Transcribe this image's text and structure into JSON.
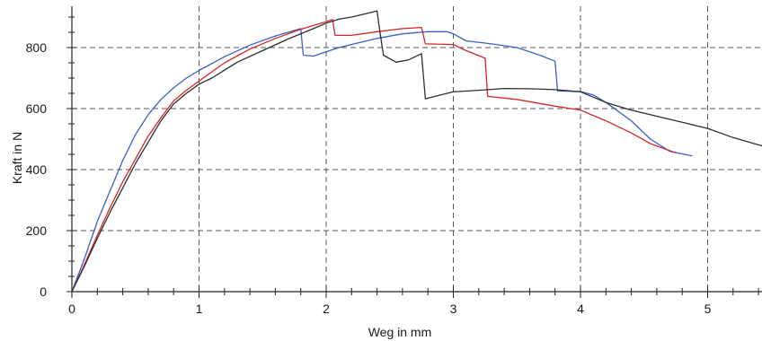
{
  "chart_data": {
    "type": "line",
    "xlabel": "Weg in mm",
    "ylabel": "Kraft in N",
    "xlim": [
      0,
      5.45
    ],
    "ylim": [
      0,
      900
    ],
    "xticks": [
      "0",
      "1",
      "2",
      "3",
      "4",
      "5"
    ],
    "yticks": [
      "0",
      "200",
      "400",
      "600",
      "800"
    ],
    "grid": "dashed",
    "series": [
      {
        "color": "#3a5fc8",
        "points": [
          [
            0,
            0
          ],
          [
            0.1,
            110
          ],
          [
            0.2,
            230
          ],
          [
            0.3,
            330
          ],
          [
            0.4,
            430
          ],
          [
            0.5,
            515
          ],
          [
            0.6,
            580
          ],
          [
            0.7,
            630
          ],
          [
            0.8,
            668
          ],
          [
            0.9,
            700
          ],
          [
            1.0,
            725
          ],
          [
            1.2,
            770
          ],
          [
            1.4,
            808
          ],
          [
            1.6,
            838
          ],
          [
            1.8,
            862
          ],
          [
            1.82,
            775
          ],
          [
            1.9,
            772
          ],
          [
            2.1,
            800
          ],
          [
            2.4,
            830
          ],
          [
            2.6,
            845
          ],
          [
            2.8,
            852
          ],
          [
            2.95,
            852
          ],
          [
            3.0,
            845
          ],
          [
            3.1,
            822
          ],
          [
            3.3,
            812
          ],
          [
            3.5,
            800
          ],
          [
            3.7,
            772
          ],
          [
            3.8,
            755
          ],
          [
            3.82,
            658
          ],
          [
            4.0,
            656
          ],
          [
            4.1,
            645
          ],
          [
            4.2,
            620
          ],
          [
            4.4,
            560
          ],
          [
            4.55,
            500
          ],
          [
            4.7,
            460
          ],
          [
            4.88,
            445
          ]
        ]
      },
      {
        "color": "#d42525",
        "points": [
          [
            0,
            0
          ],
          [
            0.1,
            90
          ],
          [
            0.2,
            185
          ],
          [
            0.3,
            275
          ],
          [
            0.4,
            360
          ],
          [
            0.5,
            435
          ],
          [
            0.6,
            510
          ],
          [
            0.7,
            570
          ],
          [
            0.8,
            625
          ],
          [
            0.9,
            660
          ],
          [
            1.0,
            690
          ],
          [
            1.2,
            750
          ],
          [
            1.4,
            795
          ],
          [
            1.6,
            830
          ],
          [
            1.8,
            860
          ],
          [
            2.0,
            885
          ],
          [
            2.05,
            892
          ],
          [
            2.07,
            840
          ],
          [
            2.2,
            840
          ],
          [
            2.4,
            852
          ],
          [
            2.6,
            862
          ],
          [
            2.75,
            866
          ],
          [
            2.78,
            812
          ],
          [
            3.0,
            810
          ],
          [
            3.1,
            790
          ],
          [
            3.25,
            765
          ],
          [
            3.27,
            640
          ],
          [
            3.5,
            630
          ],
          [
            3.8,
            608
          ],
          [
            4.0,
            595
          ],
          [
            4.2,
            560
          ],
          [
            4.4,
            520
          ],
          [
            4.55,
            485
          ],
          [
            4.75,
            455
          ]
        ]
      },
      {
        "color": "#2e2e2e",
        "points": [
          [
            0,
            0
          ],
          [
            0.1,
            85
          ],
          [
            0.2,
            175
          ],
          [
            0.3,
            260
          ],
          [
            0.4,
            340
          ],
          [
            0.5,
            420
          ],
          [
            0.6,
            490
          ],
          [
            0.7,
            560
          ],
          [
            0.8,
            615
          ],
          [
            0.9,
            650
          ],
          [
            1.0,
            680
          ],
          [
            1.1,
            700
          ],
          [
            1.3,
            752
          ],
          [
            1.5,
            790
          ],
          [
            1.7,
            828
          ],
          [
            1.9,
            862
          ],
          [
            2.0,
            880
          ],
          [
            2.1,
            893
          ],
          [
            2.2,
            900
          ],
          [
            2.3,
            910
          ],
          [
            2.4,
            920
          ],
          [
            2.42,
            860
          ],
          [
            2.45,
            775
          ],
          [
            2.55,
            752
          ],
          [
            2.65,
            760
          ],
          [
            2.75,
            780
          ],
          [
            2.78,
            632
          ],
          [
            3.0,
            655
          ],
          [
            3.2,
            660
          ],
          [
            3.4,
            666
          ],
          [
            3.6,
            665
          ],
          [
            3.8,
            662
          ],
          [
            4.0,
            655
          ],
          [
            4.2,
            620
          ],
          [
            4.4,
            595
          ],
          [
            4.6,
            575
          ],
          [
            4.8,
            555
          ],
          [
            5.0,
            535
          ],
          [
            5.2,
            505
          ],
          [
            5.45,
            475
          ]
        ]
      }
    ]
  }
}
